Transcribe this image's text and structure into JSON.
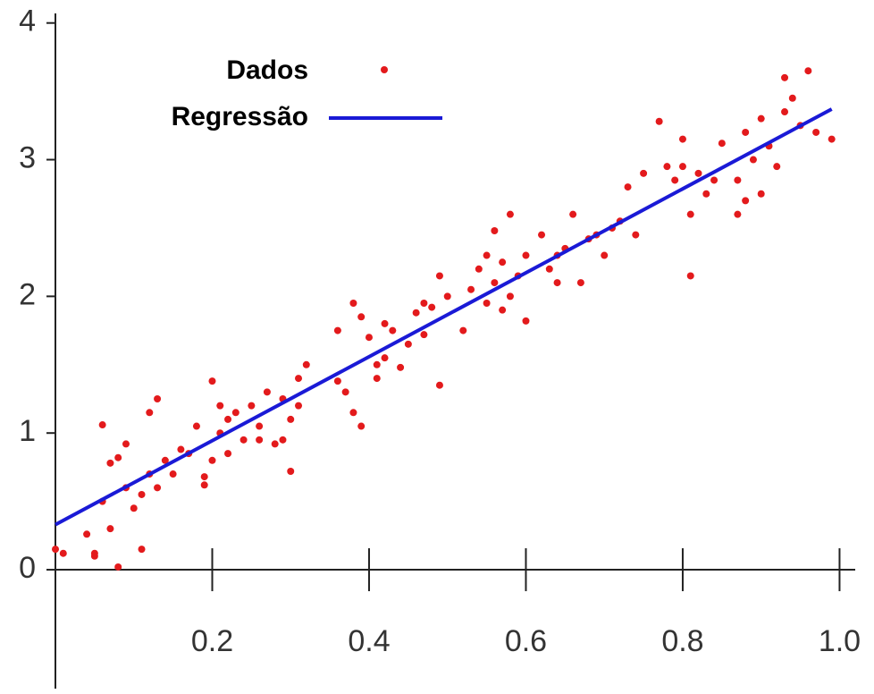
{
  "chart_data": {
    "type": "scatter",
    "xlim": [
      0,
      1.02
    ],
    "ylim": [
      -0.87,
      4.07
    ],
    "xticks": [
      0.2,
      0.4,
      0.6,
      0.8,
      {
        "value": 1,
        "label": "1.0"
      }
    ],
    "yticks": [
      0,
      1,
      2,
      3,
      4
    ],
    "grid": false,
    "legend": "upper left",
    "series": [
      {
        "name": "Dados",
        "type": "scatter",
        "color": "#e31a1c",
        "x": [
          0.0,
          0.01,
          0.04,
          0.05,
          0.05,
          0.06,
          0.06,
          0.07,
          0.08,
          0.07,
          0.08,
          0.09,
          0.09,
          0.1,
          0.11,
          0.11,
          0.12,
          0.12,
          0.13,
          0.13,
          0.14,
          0.15,
          0.16,
          0.17,
          0.18,
          0.19,
          0.19,
          0.2,
          0.2,
          0.21,
          0.21,
          0.22,
          0.22,
          0.23,
          0.24,
          0.25,
          0.26,
          0.26,
          0.27,
          0.28,
          0.29,
          0.29,
          0.3,
          0.3,
          0.31,
          0.31,
          0.32,
          0.36,
          0.36,
          0.37,
          0.38,
          0.38,
          0.39,
          0.39,
          0.4,
          0.41,
          0.41,
          0.42,
          0.42,
          0.43,
          0.44,
          0.45,
          0.46,
          0.47,
          0.47,
          0.48,
          0.49,
          0.49,
          0.5,
          0.52,
          0.53,
          0.54,
          0.55,
          0.55,
          0.56,
          0.56,
          0.57,
          0.57,
          0.58,
          0.58,
          0.59,
          0.6,
          0.6,
          0.62,
          0.63,
          0.64,
          0.64,
          0.65,
          0.66,
          0.67,
          0.68,
          0.69,
          0.7,
          0.71,
          0.72,
          0.73,
          0.74,
          0.75,
          0.77,
          0.78,
          0.79,
          0.8,
          0.8,
          0.81,
          0.81,
          0.82,
          0.83,
          0.84,
          0.85,
          0.87,
          0.87,
          0.88,
          0.88,
          0.89,
          0.9,
          0.9,
          0.91,
          0.92,
          0.93,
          0.93,
          0.94,
          0.95,
          0.96,
          0.97,
          0.99
        ],
        "values": [
          0.15,
          0.12,
          0.26,
          0.12,
          0.1,
          0.5,
          1.06,
          0.3,
          0.02,
          0.78,
          0.82,
          0.92,
          0.6,
          0.45,
          0.15,
          0.55,
          0.7,
          1.15,
          1.25,
          0.6,
          0.8,
          0.7,
          0.88,
          0.85,
          1.05,
          0.68,
          0.62,
          0.8,
          1.38,
          1.2,
          1.0,
          1.1,
          0.85,
          1.15,
          0.95,
          1.2,
          1.05,
          0.95,
          1.3,
          0.92,
          1.25,
          0.95,
          0.72,
          1.1,
          1.4,
          1.2,
          1.5,
          1.75,
          1.38,
          1.3,
          1.15,
          1.95,
          1.05,
          1.85,
          1.7,
          1.5,
          1.4,
          1.8,
          1.55,
          1.75,
          1.48,
          1.65,
          1.88,
          1.72,
          1.95,
          1.92,
          1.35,
          2.15,
          2.0,
          1.75,
          2.05,
          2.2,
          2.3,
          1.95,
          2.48,
          2.1,
          2.25,
          1.9,
          2.6,
          2.0,
          2.15,
          1.82,
          2.3,
          2.45,
          2.2,
          2.3,
          2.1,
          2.35,
          2.6,
          2.1,
          2.42,
          2.45,
          2.3,
          2.5,
          2.55,
          2.8,
          2.45,
          2.9,
          3.28,
          2.95,
          2.85,
          2.95,
          3.15,
          2.6,
          2.15,
          2.9,
          2.75,
          2.85,
          3.12,
          2.6,
          2.85,
          3.2,
          2.7,
          3.0,
          3.3,
          2.75,
          3.1,
          2.95,
          3.6,
          3.35,
          3.45,
          3.25,
          3.65,
          3.2,
          3.15
        ]
      },
      {
        "name": "Regressão",
        "type": "line",
        "color": "#1a1ad6",
        "x": [
          0,
          0.99
        ],
        "values": [
          0.33,
          3.37
        ]
      }
    ]
  }
}
